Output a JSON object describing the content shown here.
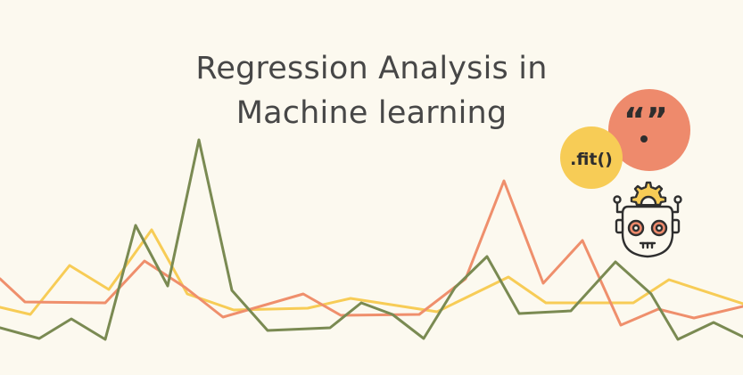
{
  "title": {
    "line1": "Regression Analysis in",
    "line2": "Machine learning"
  },
  "badges": {
    "fit": ".fit()",
    "quote": "“”",
    "quote_dot": "."
  },
  "colors": {
    "background": "#fcf9ef",
    "green": "#7a8a52",
    "salmon": "#ef8f6c",
    "yellow": "#f7cc56",
    "coral": "#ee8a6c",
    "title": "#474747",
    "outline": "#2f2f2f"
  },
  "icons": {
    "robot": "robot-head-with-gear-icon"
  }
}
